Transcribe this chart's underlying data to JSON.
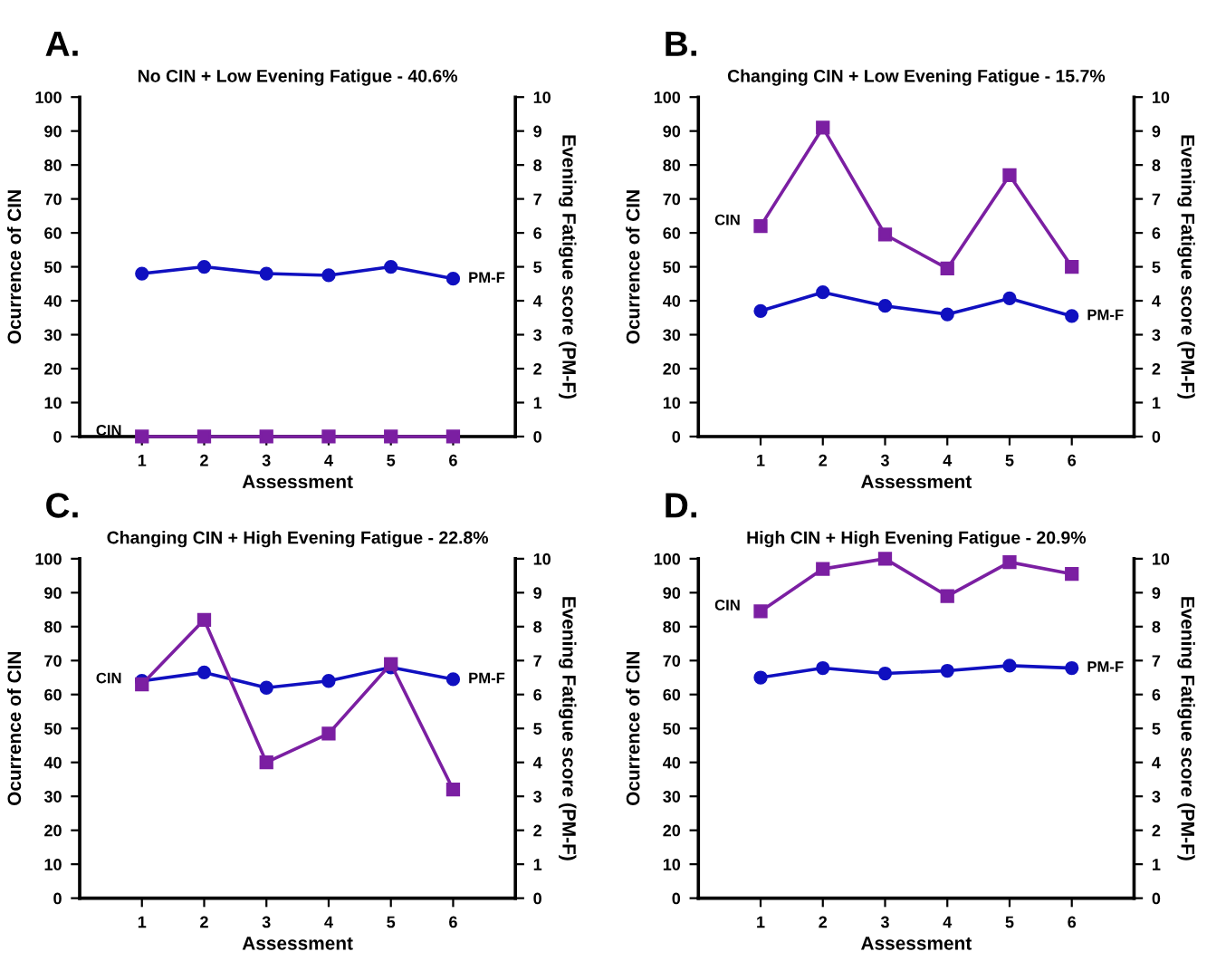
{
  "chart_data": [
    {
      "type": "line",
      "title": "No CIN + Low Evening Fatigue - 40.6%",
      "annotations": [
        "A."
      ],
      "xlabel": "Assessment",
      "ylabel": "Ocurrence of CIN",
      "y2label": "Evening Fatigue score (PM-F)",
      "x": [
        1,
        2,
        3,
        4,
        5,
        6
      ],
      "xlim": [
        0,
        7
      ],
      "xticks": [
        1,
        2,
        3,
        4,
        5,
        6
      ],
      "ylim": [
        0,
        100
      ],
      "yticks": [
        0,
        10,
        20,
        30,
        40,
        50,
        60,
        70,
        80,
        90,
        100
      ],
      "y2lim": [
        0,
        10
      ],
      "y2ticks": [
        0,
        1,
        2,
        3,
        4,
        5,
        6,
        7,
        8,
        9,
        10
      ],
      "grid": false,
      "legend": false,
      "series": [
        {
          "name": "CIN",
          "color": "#7b1fa2",
          "marker": "square",
          "values": [
            0,
            0,
            0,
            0,
            0,
            0
          ]
        },
        {
          "name": "PM-F",
          "color": "#1010c0",
          "marker": "circle",
          "axis": "y2",
          "values": [
            4.8,
            5.0,
            4.8,
            4.75,
            5.0,
            4.65
          ]
        }
      ]
    },
    {
      "type": "line",
      "title": "Changing CIN + Low Evening Fatigue - 15.7%",
      "annotations": [
        "B."
      ],
      "xlabel": "Assessment",
      "ylabel": "Ocurrence of CIN",
      "y2label": "Evening Fatigue score (PM-F)",
      "x": [
        1,
        2,
        3,
        4,
        5,
        6
      ],
      "xlim": [
        0,
        7
      ],
      "xticks": [
        1,
        2,
        3,
        4,
        5,
        6
      ],
      "ylim": [
        0,
        100
      ],
      "yticks": [
        0,
        10,
        20,
        30,
        40,
        50,
        60,
        70,
        80,
        90,
        100
      ],
      "y2lim": [
        0,
        10
      ],
      "y2ticks": [
        0,
        1,
        2,
        3,
        4,
        5,
        6,
        7,
        8,
        9,
        10
      ],
      "grid": false,
      "legend": false,
      "series": [
        {
          "name": "CIN",
          "color": "#7b1fa2",
          "marker": "square",
          "values": [
            62,
            91,
            59.5,
            49.5,
            77,
            50
          ]
        },
        {
          "name": "PM-F",
          "color": "#1010c0",
          "marker": "circle",
          "axis": "y2",
          "values": [
            3.7,
            4.25,
            3.85,
            3.6,
            4.07,
            3.55
          ]
        }
      ]
    },
    {
      "type": "line",
      "title": "Changing CIN + High Evening Fatigue - 22.8%",
      "annotations": [
        "C."
      ],
      "xlabel": "Assessment",
      "ylabel": "Ocurrence of CIN",
      "y2label": "Evening Fatigue score (PM-F)",
      "x": [
        1,
        2,
        3,
        4,
        5,
        6
      ],
      "xlim": [
        0,
        7
      ],
      "xticks": [
        1,
        2,
        3,
        4,
        5,
        6
      ],
      "ylim": [
        0,
        100
      ],
      "yticks": [
        0,
        10,
        20,
        30,
        40,
        50,
        60,
        70,
        80,
        90,
        100
      ],
      "y2lim": [
        0,
        10
      ],
      "y2ticks": [
        0,
        1,
        2,
        3,
        4,
        5,
        6,
        7,
        8,
        9,
        10
      ],
      "grid": false,
      "legend": false,
      "series": [
        {
          "name": "CIN",
          "color": "#7b1fa2",
          "marker": "square",
          "values": [
            63,
            82,
            40,
            48.5,
            69,
            32
          ]
        },
        {
          "name": "PM-F",
          "color": "#1010c0",
          "marker": "circle",
          "axis": "y2",
          "values": [
            6.4,
            6.65,
            6.2,
            6.4,
            6.8,
            6.45
          ]
        }
      ]
    },
    {
      "type": "line",
      "title": "High CIN + High Evening Fatigue - 20.9%",
      "annotations": [
        "D."
      ],
      "xlabel": "Assessment",
      "ylabel": "Ocurrence of CIN",
      "y2label": "Evening Fatigue score (PM-F)",
      "x": [
        1,
        2,
        3,
        4,
        5,
        6
      ],
      "xlim": [
        0,
        7
      ],
      "xticks": [
        1,
        2,
        3,
        4,
        5,
        6
      ],
      "ylim": [
        0,
        100
      ],
      "yticks": [
        0,
        10,
        20,
        30,
        40,
        50,
        60,
        70,
        80,
        90,
        100
      ],
      "y2lim": [
        0,
        10
      ],
      "y2ticks": [
        0,
        1,
        2,
        3,
        4,
        5,
        6,
        7,
        8,
        9,
        10
      ],
      "grid": false,
      "legend": false,
      "series": [
        {
          "name": "CIN",
          "color": "#7b1fa2",
          "marker": "square",
          "values": [
            84.5,
            97,
            100,
            89,
            99,
            95.5
          ]
        },
        {
          "name": "PM-F",
          "color": "#1010c0",
          "marker": "circle",
          "axis": "y2",
          "values": [
            6.5,
            6.78,
            6.62,
            6.7,
            6.85,
            6.78
          ]
        }
      ]
    }
  ]
}
